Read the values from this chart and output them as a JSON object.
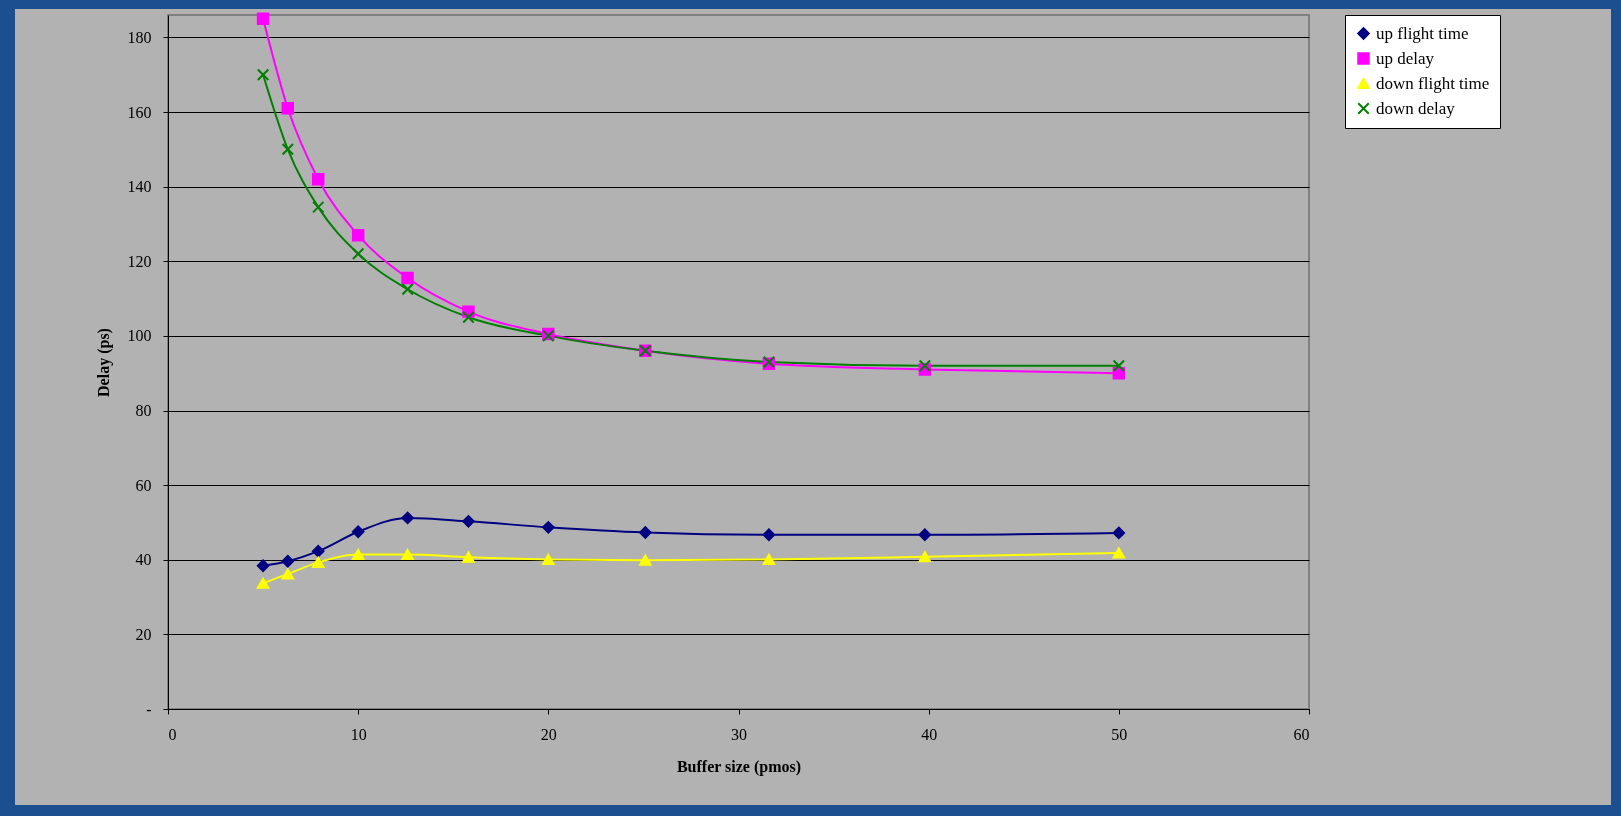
{
  "chart_data": {
    "type": "line",
    "xlabel": "Buffer size (pmos)",
    "ylabel": "Delay (ps)",
    "x": [
      5,
      6.3,
      7.9,
      10,
      12.6,
      15.8,
      20,
      25.1,
      31.6,
      39.8,
      50
    ],
    "series": [
      {
        "name": "up flight time",
        "color": "#000080",
        "marker": "diamond",
        "values": [
          38.4,
          39.6,
          42.3,
          47.5,
          51.2,
          50.3,
          48.7,
          47.3,
          46.7,
          46.7,
          47.2
        ]
      },
      {
        "name": "up delay",
        "color": "#ff00ff",
        "marker": "square",
        "values": [
          185,
          161,
          142,
          127,
          115.5,
          106.5,
          100.5,
          96,
          92.5,
          91,
          90
        ]
      },
      {
        "name": "down flight time",
        "color": "#ffff00",
        "marker": "triangle",
        "values": [
          33.7,
          36.2,
          39.3,
          41.4,
          41.4,
          40.7,
          40.1,
          39.9,
          40.1,
          40.8,
          41.8
        ]
      },
      {
        "name": "down delay",
        "color": "#008000",
        "marker": "cross",
        "values": [
          170,
          150,
          134.5,
          122,
          112.5,
          105,
          100,
          96,
          93,
          92,
          92
        ]
      }
    ],
    "xlim": [
      0,
      60
    ],
    "xticks": [
      0,
      10,
      20,
      30,
      40,
      50,
      60
    ],
    "ylim": [
      0,
      186
    ],
    "yticks": [
      {
        "value": 0,
        "label": "-"
      },
      20,
      40,
      60,
      80,
      100,
      120,
      140,
      160,
      180
    ],
    "grid": "y",
    "legend": "right"
  }
}
